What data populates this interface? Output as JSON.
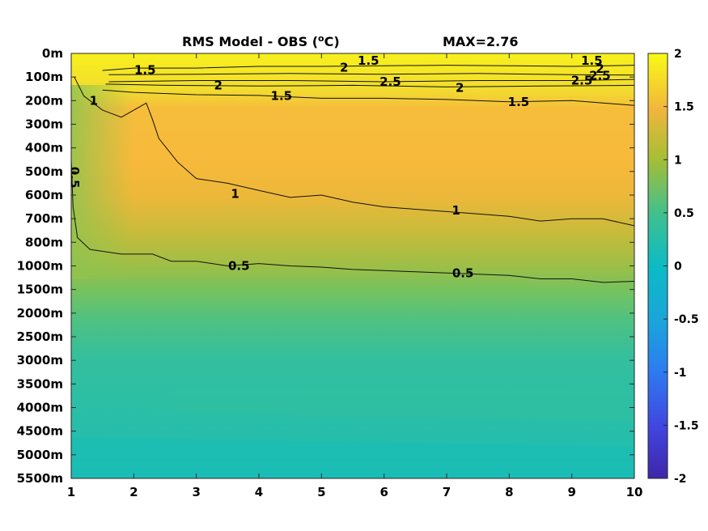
{
  "chart_data": {
    "type": "heatmap",
    "title": {
      "main": "RMS Model - OBS (",
      "sup": "o",
      "unit": "C)",
      "max_label": "MAX=2.76"
    },
    "x_ticks": [
      "1",
      "2",
      "3",
      "4",
      "5",
      "6",
      "7",
      "8",
      "9",
      "10"
    ],
    "xlim": [
      1,
      10
    ],
    "y_ticks": [
      "0m",
      "100m",
      "200m",
      "300m",
      "400m",
      "500m",
      "600m",
      "700m",
      "800m",
      "1000m",
      "1500m",
      "2000m",
      "2500m",
      "3000m",
      "3500m",
      "4000m",
      "4500m",
      "5000m",
      "5500m"
    ],
    "colorbar": {
      "ticks": [
        "2",
        "1.5",
        "1",
        "0.5",
        "0",
        "-0.5",
        "-1",
        "-1.5",
        "-2"
      ],
      "range": [
        -2,
        2
      ],
      "colormap": "parula"
    },
    "contour_levels": [
      0.5,
      1,
      1.5,
      2,
      2.5
    ],
    "contour_labels": [
      {
        "text": "1.5",
        "x": 2.18,
        "depth_index": 0.7
      },
      {
        "text": "1.5",
        "x": 5.75,
        "depth_index": 0.3
      },
      {
        "text": "1.5",
        "x": 9.32,
        "depth_index": 0.3
      },
      {
        "text": "2",
        "x": 5.36,
        "depth_index": 0.6
      },
      {
        "text": "2",
        "x": 9.45,
        "depth_index": 0.65
      },
      {
        "text": "2",
        "x": 3.35,
        "depth_index": 1.35
      },
      {
        "text": "2",
        "x": 7.21,
        "depth_index": 1.45
      },
      {
        "text": "2.5",
        "x": 6.1,
        "depth_index": 1.2
      },
      {
        "text": "2.5",
        "x": 9.16,
        "depth_index": 1.15
      },
      {
        "text": "2.5",
        "x": 9.45,
        "depth_index": 0.95
      },
      {
        "text": "1.5",
        "x": 4.36,
        "depth_index": 1.8
      },
      {
        "text": "1.5",
        "x": 8.15,
        "depth_index": 2.05
      },
      {
        "text": "1",
        "x": 1.36,
        "depth_index": 2.0
      },
      {
        "text": "1",
        "x": 3.62,
        "depth_index": 5.95
      },
      {
        "text": "1",
        "x": 7.15,
        "depth_index": 6.65
      },
      {
        "text": "0.5",
        "x": 1.05,
        "depth_index": 5.25
      },
      {
        "text": "0.5",
        "x": 3.68,
        "depth_index": 9.0
      },
      {
        "text": "0.5",
        "x": 7.26,
        "depth_index": 9.3
      }
    ],
    "contour_lines": {
      "c2_upper": [
        [
          1.5,
          0.72
        ],
        [
          2.0,
          0.62
        ],
        [
          3.0,
          0.62
        ],
        [
          4.0,
          0.55
        ],
        [
          5.0,
          0.55
        ],
        [
          6.0,
          0.52
        ],
        [
          7.0,
          0.5
        ],
        [
          8.0,
          0.52
        ],
        [
          9.0,
          0.55
        ],
        [
          10.0,
          0.5
        ]
      ],
      "c25_upper": [
        [
          1.6,
          0.9
        ],
        [
          3.0,
          0.88
        ],
        [
          4.5,
          0.85
        ],
        [
          6.0,
          0.88
        ],
        [
          7.5,
          0.85
        ],
        [
          9.0,
          0.9
        ],
        [
          10.0,
          0.92
        ]
      ],
      "c25_lower": [
        [
          1.6,
          1.2
        ],
        [
          3.0,
          1.15
        ],
        [
          4.5,
          1.15
        ],
        [
          6.0,
          1.2
        ],
        [
          7.5,
          1.15
        ],
        [
          9.0,
          1.15
        ],
        [
          10.0,
          1.1
        ]
      ],
      "c2_lower": [
        [
          1.55,
          1.3
        ],
        [
          2.5,
          1.35
        ],
        [
          4.0,
          1.38
        ],
        [
          5.5,
          1.35
        ],
        [
          7.0,
          1.42
        ],
        [
          8.5,
          1.38
        ],
        [
          10.0,
          1.35
        ]
      ],
      "c15": [
        [
          1.5,
          1.55
        ],
        [
          2.0,
          1.65
        ],
        [
          3.0,
          1.75
        ],
        [
          4.0,
          1.78
        ],
        [
          5.0,
          1.9
        ],
        [
          6.0,
          1.9
        ],
        [
          7.0,
          1.95
        ],
        [
          8.0,
          2.05
        ],
        [
          9.0,
          2.0
        ],
        [
          10.0,
          2.2
        ]
      ],
      "c1": [
        [
          1.05,
          1.0
        ],
        [
          1.2,
          1.8
        ],
        [
          1.5,
          2.4
        ],
        [
          1.8,
          2.7
        ],
        [
          2.2,
          2.1
        ],
        [
          2.3,
          2.8
        ],
        [
          2.4,
          3.6
        ],
        [
          2.7,
          4.6
        ],
        [
          3.0,
          5.3
        ],
        [
          3.5,
          5.5
        ],
        [
          4.0,
          5.8
        ],
        [
          4.5,
          6.1
        ],
        [
          5.0,
          6.0
        ],
        [
          5.5,
          6.3
        ],
        [
          6.0,
          6.5
        ],
        [
          6.5,
          6.6
        ],
        [
          7.0,
          6.7
        ],
        [
          7.5,
          6.8
        ],
        [
          8.0,
          6.9
        ],
        [
          8.5,
          7.1
        ],
        [
          9.0,
          7.0
        ],
        [
          9.5,
          7.0
        ],
        [
          10.0,
          7.3
        ]
      ],
      "c05": [
        [
          1.0,
          2.6
        ],
        [
          1.0,
          4.5
        ],
        [
          1.03,
          6.5
        ],
        [
          1.1,
          7.8
        ],
        [
          1.3,
          8.3
        ],
        [
          1.8,
          8.5
        ],
        [
          2.3,
          8.5
        ],
        [
          2.6,
          8.8
        ],
        [
          3.0,
          8.8
        ],
        [
          3.5,
          9.0
        ],
        [
          4.0,
          8.9
        ],
        [
          4.5,
          9.0
        ],
        [
          5.0,
          9.05
        ],
        [
          5.5,
          9.15
        ],
        [
          6.0,
          9.2
        ],
        [
          6.5,
          9.25
        ],
        [
          7.0,
          9.3
        ],
        [
          7.5,
          9.35
        ],
        [
          8.0,
          9.4
        ],
        [
          8.5,
          9.55
        ],
        [
          9.0,
          9.55
        ],
        [
          9.5,
          9.7
        ],
        [
          10.0,
          9.65
        ]
      ]
    }
  }
}
